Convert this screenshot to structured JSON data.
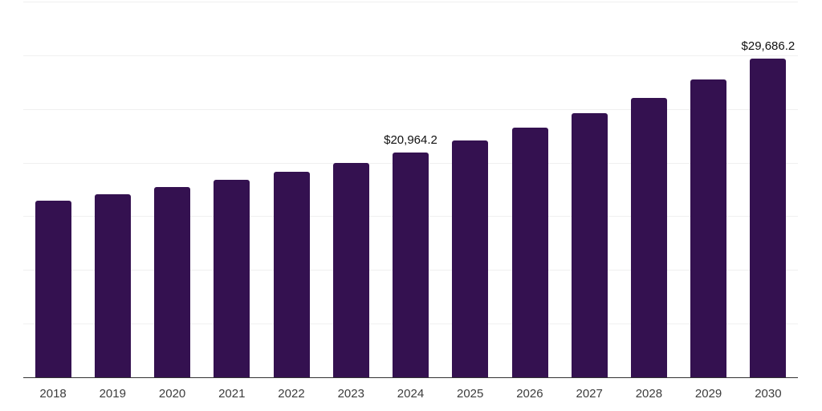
{
  "chart_meta": {
    "background_color": "#ffffff",
    "bar_color": "#341150",
    "grid_color": "#f0f0f0",
    "axis_line_color": "#333333",
    "tick_label_color": "#3c3c3c",
    "data_label_color": "#111111"
  },
  "chart_data": {
    "type": "bar",
    "title": "",
    "xlabel": "",
    "ylabel": "",
    "categories": [
      "2018",
      "2019",
      "2020",
      "2021",
      "2022",
      "2023",
      "2024",
      "2025",
      "2026",
      "2027",
      "2028",
      "2029",
      "2030"
    ],
    "values": [
      16470,
      17030,
      17760,
      18430,
      19170,
      19990,
      20964.2,
      22040,
      23240,
      24590,
      26010,
      27720,
      29686.2
    ],
    "data_labels": {
      "2024": "$20,964.2",
      "2030": "$29,686.2"
    },
    "ylim": [
      0,
      35000
    ],
    "grid_step": 5000,
    "grid": true,
    "legend": "none"
  }
}
